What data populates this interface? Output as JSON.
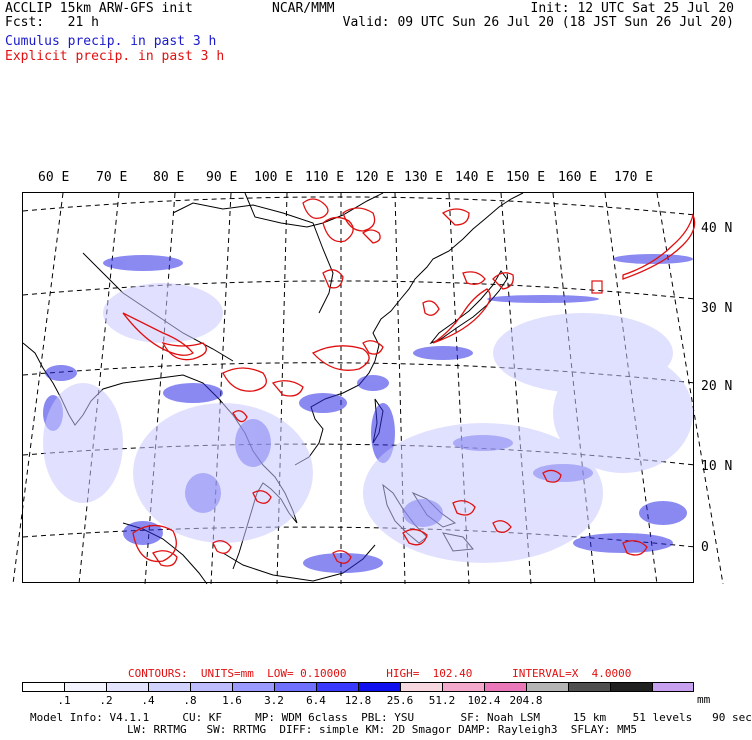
{
  "header": {
    "left1": "ACCLIP 15km ARW-GFS init",
    "left2": "Fcst:   21 h",
    "center": "NCAR/MMM",
    "init": "Init: 12 UTC Sat 25 Jul 20",
    "valid": "Valid: 09 UTC Sun 26 Jul 20 (18 JST Sun 26 Jul 20)",
    "cumulus": "Cumulus precip. in past 3 h",
    "explicit": "Explicit precip. in past 3 h"
  },
  "map": {
    "lon_labels": [
      "60 E",
      "70 E",
      "80 E",
      "90 E",
      "100 E",
      "110 E",
      "120 E",
      "130 E",
      "140 E",
      "150 E",
      "160 E",
      "170 E"
    ],
    "lat_labels": [
      "40 N",
      "30 N",
      "20 N",
      "10 N",
      "0"
    ],
    "colors": {
      "cumulus": "#2020e0",
      "explicit": "#e01010",
      "coast": "#000000",
      "grid": "#000000"
    }
  },
  "contours": {
    "label": "CONTOURS:  UNITS=mm  LOW= 0.10000      HIGH=  102.40      INTERVAL=X  4.0000"
  },
  "legend": {
    "colors": [
      "#ffffff",
      "#f4f4ff",
      "#e4e4ff",
      "#d2d2ff",
      "#bcbcff",
      "#9a9aff",
      "#7070ff",
      "#3a3aff",
      "#1010ee",
      "#f8d8e0",
      "#f4a8cc",
      "#ea78b8",
      "#b4b4b4",
      "#505050",
      "#202020",
      "#c8a0f0"
    ],
    "ticks": [
      ".1",
      ".2",
      ".4",
      ".8",
      "1.6",
      "3.2",
      "6.4",
      "12.8",
      "25.6",
      "51.2",
      "102.4",
      "204.8"
    ],
    "unit": "mm"
  },
  "footer": {
    "line1": "Model Info: V4.1.1     CU: KF     MP: WDM 6class  PBL: YSU       SF: Noah LSM     15 km    51 levels   90 sec",
    "line2": "LW: RRTMG   SW: RRTMG  DIFF: simple KM: 2D Smagor DAMP: Rayleigh3  SFLAY: MM5"
  }
}
